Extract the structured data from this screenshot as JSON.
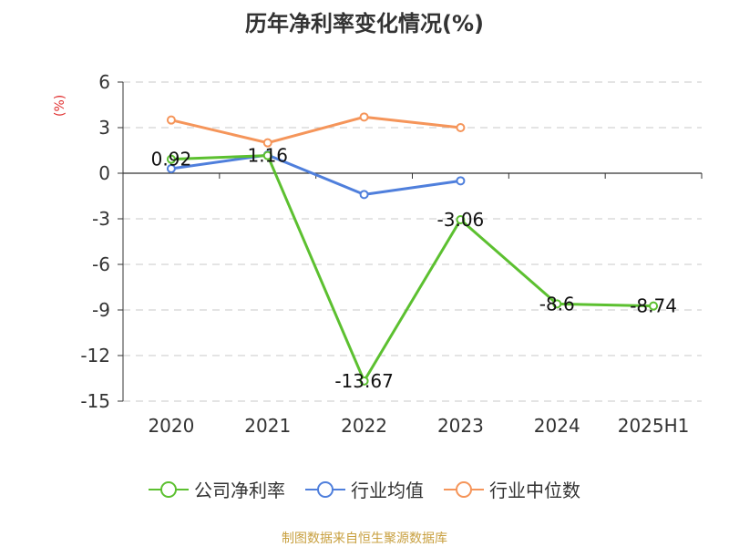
{
  "chart_data": {
    "type": "line",
    "title": "历年净利率变化情况(%)",
    "ylabel": "(%)",
    "categories": [
      "2020",
      "2021",
      "2022",
      "2023",
      "2024",
      "2025H1"
    ],
    "ylim": [
      -15,
      6
    ],
    "yticks": [
      6,
      3,
      0,
      -3,
      -6,
      -9,
      -12,
      -15
    ],
    "grid": true,
    "legend_position": "bottom",
    "series": [
      {
        "name": "公司净利率",
        "color": "#5cc030",
        "values": [
          0.92,
          1.16,
          -13.67,
          -3.06,
          -8.6,
          -8.74
        ],
        "labels": [
          "0.92",
          "1.16",
          "-13.67",
          "-3.06",
          "-8.6",
          "-8.74"
        ]
      },
      {
        "name": "行业均值",
        "color": "#4f7fdc",
        "values": [
          0.3,
          1.2,
          -1.4,
          -0.5,
          null,
          null
        ]
      },
      {
        "name": "行业中位数",
        "color": "#f5955a",
        "values": [
          3.5,
          2.0,
          3.7,
          3.0,
          null,
          null
        ]
      }
    ]
  },
  "source": "制图数据来自恒生聚源数据库"
}
